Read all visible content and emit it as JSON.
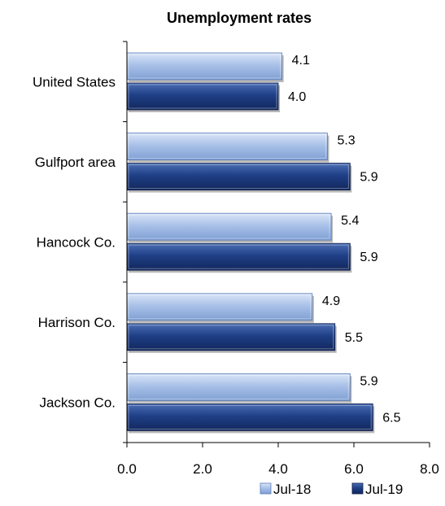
{
  "chart_data": {
    "type": "bar",
    "orientation": "horizontal",
    "title": "Unemployment rates",
    "categories": [
      "United States",
      "Gulfport area",
      "Hancock Co.",
      "Harrison Co.",
      "Jackson Co."
    ],
    "series": [
      {
        "name": "Jul-18",
        "values": [
          4.1,
          5.3,
          5.4,
          4.9,
          5.9
        ],
        "color": "#a9c1e8"
      },
      {
        "name": "Jul-19",
        "values": [
          4.0,
          5.9,
          5.9,
          5.5,
          6.5
        ],
        "color": "#1f3f86"
      }
    ],
    "xlim": [
      0,
      8
    ],
    "xticks": [
      "0.0",
      "2.0",
      "4.0",
      "6.0",
      "8.0"
    ],
    "xlabel": "",
    "ylabel": "",
    "grid": false,
    "legend_position": "bottom-right",
    "data_labels": true
  }
}
